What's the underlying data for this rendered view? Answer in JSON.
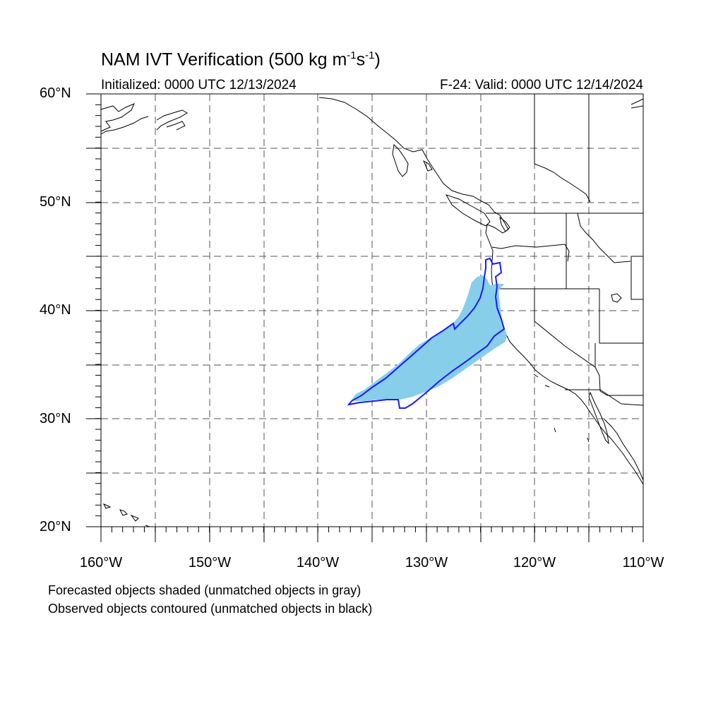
{
  "title": {
    "main": "NAM IVT Verification (500 kg m",
    "exp1": "-1",
    "mid": "s",
    "exp2": "-1",
    "close": ")"
  },
  "initialized": "Initialized: 0000 UTC 12/13/2024",
  "valid": "F-24: Valid: 0000 UTC 12/14/2024",
  "lat_labels": [
    "60°N",
    "50°N",
    "40°N",
    "30°N",
    "20°N"
  ],
  "lon_labels": [
    "160°W",
    "150°W",
    "140°W",
    "130°W",
    "120°W",
    "110°W"
  ],
  "notes": {
    "forecast": "Forecasted objects shaded (unmatched objects in gray)",
    "observed": "Observed objects contoured (unmatched objects in black)"
  },
  "colors": {
    "forecast_fill": "#87ceeb",
    "observed_contour": "#1a1aff",
    "coastline": "#000000",
    "grid": "#555555"
  },
  "map_extent": {
    "lon_min": -160,
    "lon_max": -110,
    "lat_min": 20,
    "lat_max": 60
  }
}
